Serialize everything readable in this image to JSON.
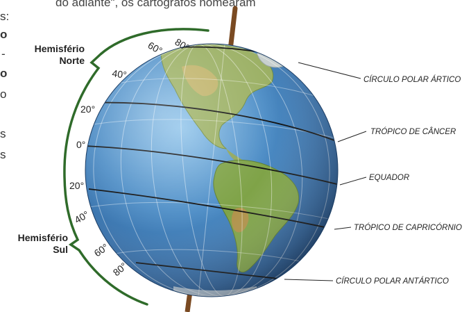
{
  "page": {
    "top_text": "do adiante\", os cartógrafos nomearam",
    "side_fragments": [
      "s:",
      "o",
      "-",
      "o",
      "o",
      "s",
      "s"
    ]
  },
  "hemispheres": {
    "north": {
      "line1": "Hemisfério",
      "line2": "Norte"
    },
    "south": {
      "line1": "Hemisfério",
      "line2": "Sul"
    }
  },
  "latitudes": {
    "north": [
      "80°",
      "60°",
      "40°",
      "20°"
    ],
    "equator": "0°",
    "south": [
      "20°",
      "40°",
      "60°",
      "80°"
    ]
  },
  "lines": [
    {
      "label": "CÍRCULO POLAR ÁRTICO"
    },
    {
      "label": "TRÓPICO DE CÂNCER"
    },
    {
      "label": "EQUADOR"
    },
    {
      "label": "TRÓPICO DE CAPRICÓRNIO"
    },
    {
      "label": "CÍRCULO POLAR ANTÁRTICO"
    }
  ],
  "colors": {
    "bracket": "#2f6b2a",
    "ocean": "#3f7fb8",
    "axis": "#7a4a22"
  }
}
